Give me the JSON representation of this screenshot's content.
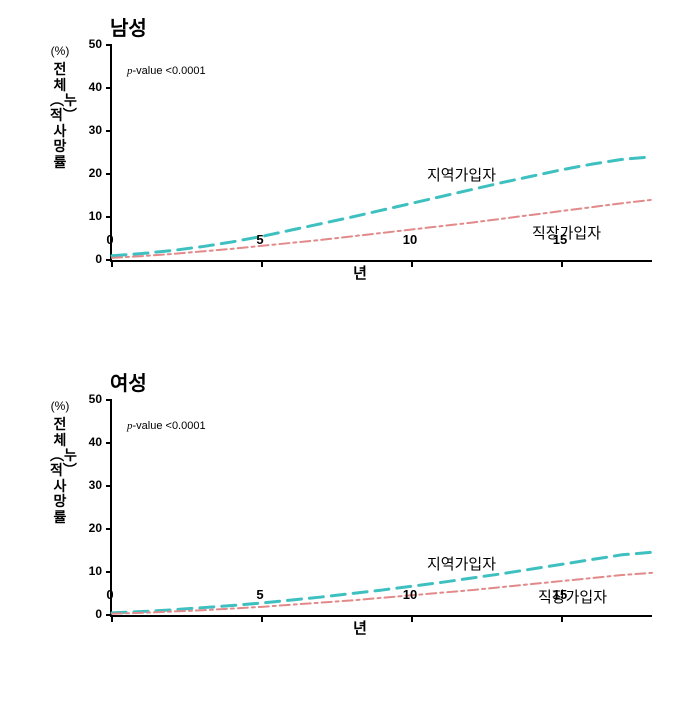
{
  "charts": [
    {
      "title": "남성",
      "ylabel_percent": "(%)",
      "ylabel": "전체︵누적︶사망률",
      "xlabel": "년",
      "pvalue": "-value <0.0001",
      "xlim": [
        0,
        18
      ],
      "ylim": [
        0,
        50
      ],
      "xticks": [
        0,
        5,
        10,
        15
      ],
      "yticks": [
        0,
        10,
        20,
        30,
        40,
        50
      ],
      "background_color": "#ffffff",
      "axis_color": "#000000",
      "series": [
        {
          "name": "지역가입자",
          "color": "#3fc0c0",
          "style": "dash",
          "label_x": 10.5,
          "label_y": 20,
          "x": [
            0,
            1,
            2,
            3,
            4,
            5,
            6,
            7,
            8,
            9,
            10,
            11,
            12,
            13,
            14,
            15,
            16,
            17,
            18
          ],
          "y": [
            1,
            1.5,
            2.2,
            3.1,
            4.2,
            5.5,
            7,
            8.5,
            10,
            11.6,
            13.2,
            14.8,
            16.4,
            18,
            19.5,
            21,
            22.3,
            23.4,
            24
          ]
        },
        {
          "name": "직장가입자",
          "color": "#e28a8a",
          "style": "dashdot",
          "label_x": 14,
          "label_y": 6.5,
          "x": [
            0,
            1,
            2,
            3,
            4,
            5,
            6,
            7,
            8,
            9,
            10,
            11,
            12,
            13,
            14,
            15,
            16,
            17,
            18
          ],
          "y": [
            0.5,
            0.9,
            1.4,
            2,
            2.6,
            3.3,
            4,
            4.7,
            5.5,
            6.3,
            7.1,
            7.9,
            8.7,
            9.6,
            10.5,
            11.4,
            12.3,
            13.2,
            14
          ]
        }
      ]
    },
    {
      "title": "여성",
      "ylabel_percent": "(%)",
      "ylabel": "전체︵누적︶사망률",
      "xlabel": "년",
      "pvalue": "-value <0.0001",
      "xlim": [
        0,
        18
      ],
      "ylim": [
        0,
        50
      ],
      "xticks": [
        0,
        5,
        10,
        15
      ],
      "yticks": [
        0,
        10,
        20,
        30,
        40,
        50
      ],
      "background_color": "#ffffff",
      "axis_color": "#000000",
      "series": [
        {
          "name": "지역가입자",
          "color": "#3fc0c0",
          "style": "dash",
          "label_x": 10.5,
          "label_y": 12,
          "x": [
            0,
            1,
            2,
            3,
            4,
            5,
            6,
            7,
            8,
            9,
            10,
            11,
            12,
            13,
            14,
            15,
            16,
            17,
            18
          ],
          "y": [
            0.5,
            0.8,
            1.2,
            1.7,
            2.2,
            2.8,
            3.5,
            4.2,
            5,
            5.8,
            6.7,
            7.6,
            8.6,
            9.6,
            10.7,
            11.8,
            12.9,
            14,
            14.6
          ]
        },
        {
          "name": "직장가입자",
          "color": "#e28a8a",
          "style": "dashdot",
          "label_x": 14.2,
          "label_y": 4.5,
          "x": [
            0,
            1,
            2,
            3,
            4,
            5,
            6,
            7,
            8,
            9,
            10,
            11,
            12,
            13,
            14,
            15,
            16,
            17,
            18
          ],
          "y": [
            0.3,
            0.5,
            0.8,
            1.1,
            1.5,
            1.9,
            2.4,
            2.9,
            3.4,
            4,
            4.6,
            5.2,
            5.8,
            6.5,
            7.2,
            7.9,
            8.6,
            9.3,
            9.8
          ]
        }
      ]
    }
  ]
}
